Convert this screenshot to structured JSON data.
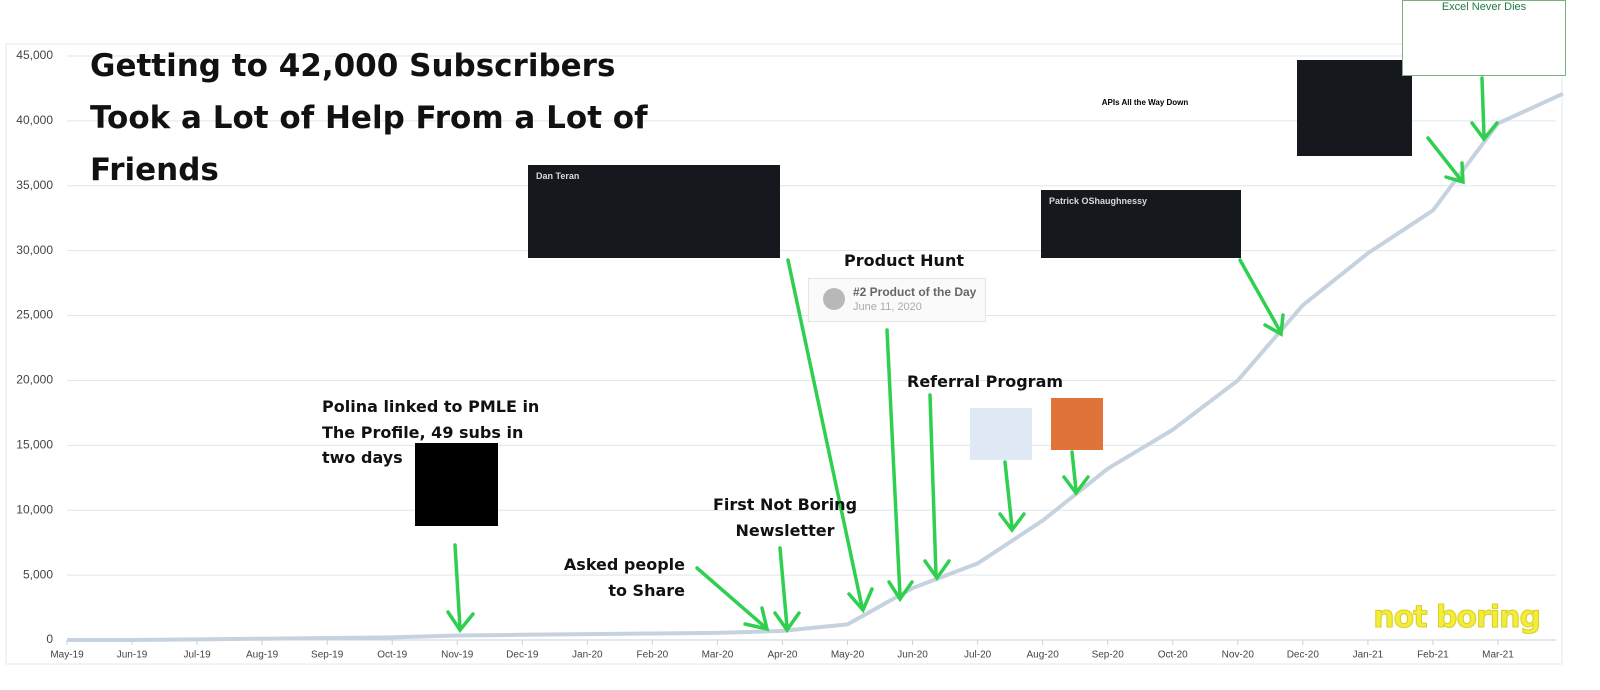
{
  "chart_data": {
    "type": "line",
    "title": "Getting to 42,000 Subscribers Took a Lot of Help From a Lot of Friends",
    "categories": [
      "May-19",
      "Jun-19",
      "Jul-19",
      "Aug-19",
      "Sep-19",
      "Oct-19",
      "Nov-19",
      "Dec-19",
      "Jan-20",
      "Feb-20",
      "Mar-20",
      "Apr-20",
      "May-20",
      "Jun-20",
      "Jul-20",
      "Aug-20",
      "Sep-20",
      "Oct-20",
      "Nov-20",
      "Dec-20",
      "Jan-21",
      "Feb-21",
      "Mar-21",
      null
    ],
    "series": [
      {
        "name": "Subscribers",
        "color": "#c6d3de",
        "values": [
          0,
          0,
          50,
          100,
          150,
          200,
          350,
          400,
          450,
          500,
          550,
          700,
          1200,
          4000,
          5900,
          9200,
          13200,
          16200,
          20000,
          25800,
          29800,
          33100,
          39800,
          42100
        ]
      }
    ],
    "ylim": [
      0,
      45000
    ],
    "yticks": [
      0,
      {
        "value": 5000,
        "label": "5,000"
      },
      {
        "value": 10000,
        "label": "10,000"
      },
      {
        "value": 15000,
        "label": "15,000"
      },
      {
        "value": 20000,
        "label": "20,000"
      },
      {
        "value": 25000,
        "label": "25,000"
      },
      {
        "value": 30000,
        "label": "30,000"
      },
      {
        "value": 35000,
        "label": "35,000"
      },
      {
        "value": 40000,
        "label": "40,000"
      },
      {
        "value": 45000,
        "label": "45,000"
      }
    ],
    "grid": true,
    "annotations": [
      "Polina linked  to PMLE in The Profile, 49 subs in two days",
      "Asked people to Share",
      "First Not Boring Newsletter",
      "Product Hunt",
      "Referral Program",
      "#2 Product of the Day",
      "June 11, 2020",
      "Dan Teran",
      "APIs All the Way Down",
      "Patrick OShaughnessy",
      "Excel Never Dies",
      "not boring"
    ]
  }
}
